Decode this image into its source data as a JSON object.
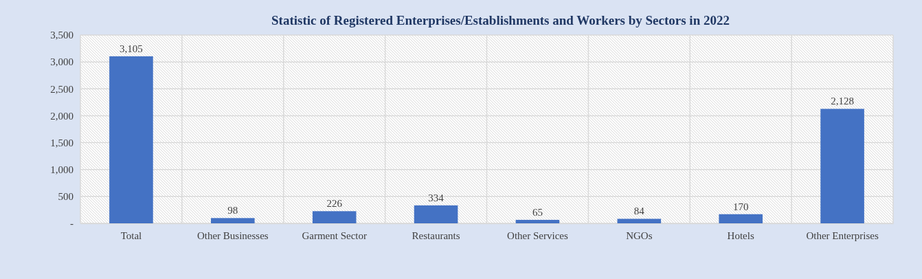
{
  "chart_data": {
    "type": "bar",
    "title": "Statistic of Registered Enterprises/Establishments and Workers by Sectors in 2022",
    "categories": [
      "Total",
      "Other Businesses",
      "Garment Sector",
      "Restaurants",
      "Other Services",
      "NGOs",
      "Hotels",
      "Other Enterprises"
    ],
    "values": [
      3105,
      98,
      226,
      334,
      65,
      84,
      170,
      2128
    ],
    "color": "#4472c4",
    "ylim": [
      0,
      3500
    ],
    "yticks": [
      {
        "value": 0,
        "label": "-"
      },
      {
        "value": 500,
        "label": "500"
      },
      {
        "value": 1000,
        "label": "1,000"
      },
      {
        "value": 1500,
        "label": "1,500"
      },
      {
        "value": 2000,
        "label": "2,000"
      },
      {
        "value": 2500,
        "label": "2,500"
      },
      {
        "value": 3000,
        "label": "3,000"
      },
      {
        "value": 3500,
        "label": "3,500"
      }
    ],
    "value_labels": [
      "3,105",
      "98",
      "226",
      "334",
      "65",
      "84",
      "170",
      "2,128"
    ],
    "grid": true
  }
}
